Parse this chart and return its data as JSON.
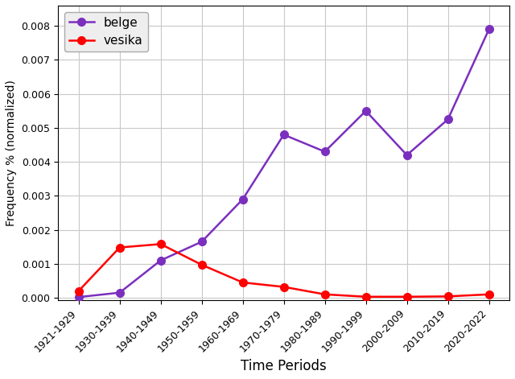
{
  "time_periods": [
    "1921-1929",
    "1930-1939",
    "1940-1949",
    "1950-1959",
    "1960-1969",
    "1970-1979",
    "1980-1989",
    "1990-1999",
    "2000-2009",
    "2010-2019",
    "2020-2022"
  ],
  "belge": [
    2e-05,
    0.00015,
    0.0011,
    0.00165,
    0.0029,
    0.0048,
    0.0043,
    0.0055,
    0.0042,
    0.00525,
    0.0079
  ],
  "vesika": [
    0.0002,
    0.00148,
    0.00158,
    0.00097,
    0.00045,
    0.00032,
    0.0001,
    3e-05,
    3e-05,
    4e-05,
    0.0001
  ],
  "belge_color": "#7B2FBE",
  "vesika_color": "#FF0000",
  "xlabel": "Time Periods",
  "ylabel": "Frequency % (normalized)",
  "ylim": [
    -8e-05,
    0.0086
  ],
  "yticks": [
    0.0,
    0.001,
    0.002,
    0.003,
    0.004,
    0.005,
    0.006,
    0.007,
    0.008
  ],
  "legend_labels": [
    "belge",
    "vesika"
  ],
  "grid_color": "#c8c8c8",
  "plot_bg_color": "#ffffff",
  "fig_bg_color": "#ffffff",
  "marker": "o",
  "markersize": 7,
  "linewidth": 1.8,
  "xlabel_fontsize": 12,
  "ylabel_fontsize": 10,
  "tick_fontsize": 9,
  "legend_fontsize": 11
}
